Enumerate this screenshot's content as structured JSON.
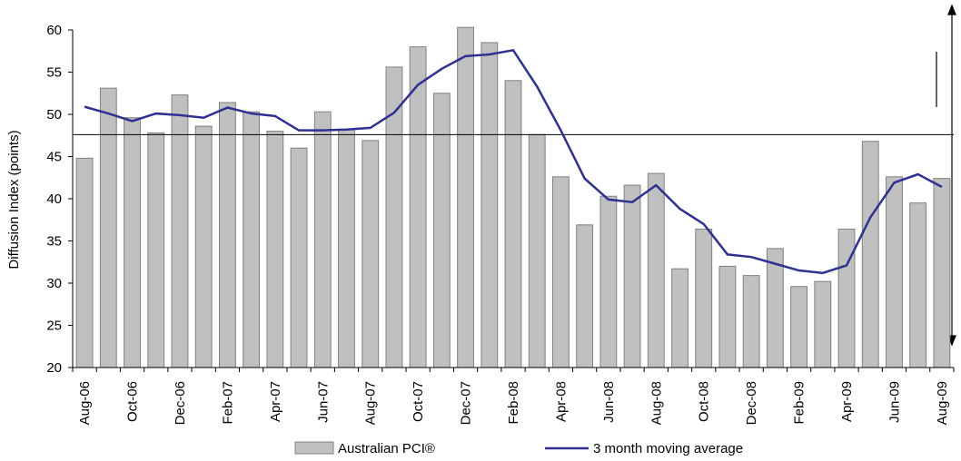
{
  "chart_data": {
    "type": "bar_line",
    "y_axis_title": "Diffusion Index (points)",
    "categories": [
      "Aug-06",
      null,
      "Oct-06",
      null,
      "Dec-06",
      null,
      "Feb-07",
      null,
      "Apr-07",
      null,
      "Jun-07",
      null,
      "Aug-07",
      null,
      "Oct-07",
      null,
      "Dec-07",
      null,
      "Feb-08",
      null,
      "Apr-08",
      null,
      "Jun-08",
      null,
      "Aug-08",
      null,
      "Oct-08",
      null,
      "Dec-08",
      null,
      "Feb-09",
      null,
      "Apr-09",
      null,
      "Jun-09",
      null,
      "Aug-09"
    ],
    "series": [
      {
        "name": "Australian PCI®",
        "kind": "bar",
        "color": "#c0c0c0",
        "values": [
          44.8,
          53.1,
          49.6,
          47.8,
          52.3,
          48.6,
          51.4,
          50.3,
          48.0,
          46.0,
          50.3,
          48.2,
          46.9,
          55.6,
          58.0,
          52.5,
          60.3,
          58.5,
          54.0,
          47.6,
          42.6,
          36.9,
          40.3,
          41.6,
          43.0,
          31.7,
          36.4,
          32.0,
          30.9,
          34.1,
          29.6,
          30.2,
          36.4,
          46.8,
          42.6,
          39.5,
          42.4
        ]
      },
      {
        "name": "3 month moving average",
        "kind": "line",
        "color": "#2e3192",
        "values": [
          50.9,
          50.1,
          49.2,
          50.1,
          49.9,
          49.6,
          50.8,
          50.1,
          49.8,
          48.1,
          48.1,
          48.2,
          48.4,
          50.2,
          53.5,
          55.4,
          56.9,
          57.1,
          57.6,
          53.3,
          48.1,
          42.4,
          39.9,
          39.6,
          41.6,
          38.8,
          37.0,
          33.4,
          33.1,
          32.3,
          31.5,
          31.2,
          32.1,
          37.8,
          41.9,
          42.9,
          41.4
        ]
      }
    ],
    "reference_line": 47.6,
    "ylim": [
      20,
      60
    ],
    "yticks": [
      20,
      25,
      30,
      35,
      40,
      45,
      50,
      55,
      60
    ],
    "legend": "bottom"
  }
}
